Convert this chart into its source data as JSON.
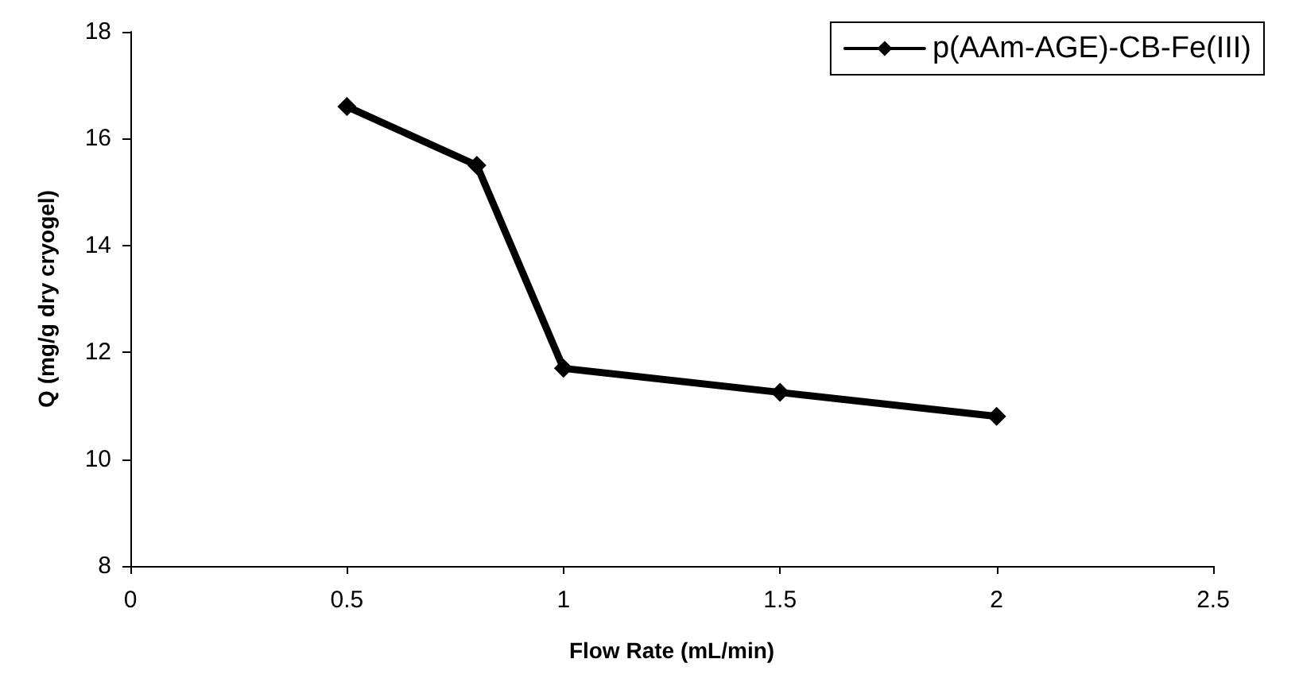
{
  "chart_data": {
    "type": "line",
    "xlabel": "Flow Rate (mL/min)",
    "ylabel": "Q (mg/g dry cryogel)",
    "x": [
      0.5,
      0.8,
      1,
      1.5,
      2
    ],
    "series": [
      {
        "name": "p(AAm-AGE)-CB-Fe(III)",
        "color": "#000000",
        "values": [
          16.6,
          15.5,
          11.7,
          11.25,
          10.8
        ]
      }
    ],
    "xlim": [
      0,
      2.5
    ],
    "xticks": [
      0,
      0.5,
      1,
      1.5,
      2,
      2.5
    ],
    "ylim": [
      8,
      18
    ],
    "yticks": [
      8,
      10,
      12,
      14,
      16,
      18
    ],
    "grid": false,
    "legend": "top right",
    "marker": "diamond",
    "line_style": "solid"
  }
}
